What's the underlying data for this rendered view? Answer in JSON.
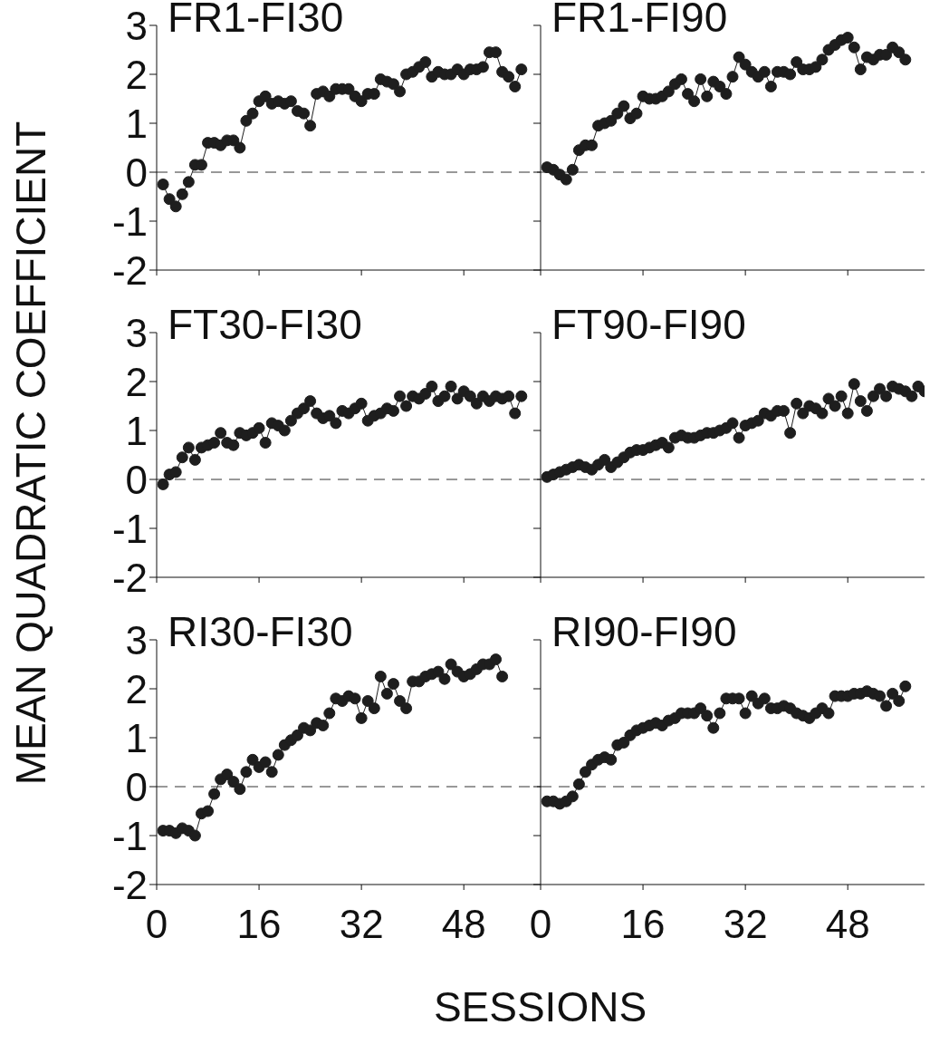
{
  "chart_data": [
    {
      "type": "line",
      "title": "FR1-FI30",
      "ylabel": "MEAN QUADRATIC COEFFICIENT",
      "xlim": [
        0,
        60
      ],
      "xticks": [
        0,
        16,
        32,
        48
      ],
      "ylim": [
        -2,
        3
      ],
      "yticks": [
        3,
        2,
        1,
        0,
        -1,
        -2
      ],
      "tick_labels": "y",
      "marker": "circle",
      "color": "#1e1e1e",
      "ref_lines": [
        {
          "axis": "y",
          "value": 0,
          "line_style": "dashed",
          "color": "#333333"
        }
      ],
      "x": [
        1,
        2,
        3,
        4,
        5,
        6,
        7,
        8,
        9,
        10,
        11,
        12,
        13,
        14,
        15,
        16,
        17,
        18,
        19,
        20,
        21,
        22,
        23,
        24,
        25,
        26,
        27,
        28,
        29,
        30,
        31,
        32,
        33,
        34,
        35,
        36,
        37,
        38,
        39,
        40,
        41,
        42,
        43,
        44,
        45,
        46,
        47,
        48,
        49,
        50,
        51,
        52,
        53,
        54,
        55,
        56,
        57
      ],
      "values": [
        -0.25,
        -0.55,
        -0.7,
        -0.45,
        -0.2,
        0.15,
        0.15,
        0.6,
        0.6,
        0.55,
        0.65,
        0.65,
        0.5,
        1.05,
        1.2,
        1.45,
        1.55,
        1.4,
        1.45,
        1.4,
        1.45,
        1.25,
        1.2,
        0.95,
        1.6,
        1.65,
        1.55,
        1.7,
        1.7,
        1.7,
        1.55,
        1.45,
        1.6,
        1.6,
        1.9,
        1.85,
        1.8,
        1.65,
        2.0,
        2.05,
        2.15,
        2.25,
        1.95,
        2.05,
        2.0,
        2.0,
        2.1,
        2.0,
        2.1,
        2.1,
        2.15,
        2.45,
        2.45,
        2.05,
        1.95,
        1.75,
        2.1
      ]
    },
    {
      "type": "line",
      "title": "FR1-FI90",
      "xlim": [
        0,
        60
      ],
      "xticks": [
        0,
        16,
        32,
        48
      ],
      "ylim": [
        -2,
        3
      ],
      "yticks": [
        3,
        2,
        1,
        0,
        -1,
        -2
      ],
      "tick_labels": false,
      "marker": "circle",
      "color": "#1e1e1e",
      "ref_lines": [
        {
          "axis": "y",
          "value": 0,
          "line_style": "dashed",
          "color": "#333333"
        }
      ],
      "x": [
        1,
        2,
        3,
        4,
        5,
        6,
        7,
        8,
        9,
        10,
        11,
        12,
        13,
        14,
        15,
        16,
        17,
        18,
        19,
        20,
        21,
        22,
        23,
        24,
        25,
        26,
        27,
        28,
        29,
        30,
        31,
        32,
        33,
        34,
        35,
        36,
        37,
        38,
        39,
        40,
        41,
        42,
        43,
        44,
        45,
        46,
        47,
        48,
        49,
        50,
        51,
        52,
        53,
        54,
        55,
        56,
        57
      ],
      "values": [
        0.1,
        0.05,
        -0.05,
        -0.15,
        0.05,
        0.45,
        0.55,
        0.55,
        0.95,
        1.0,
        1.05,
        1.2,
        1.35,
        1.1,
        1.2,
        1.55,
        1.5,
        1.5,
        1.55,
        1.65,
        1.8,
        1.9,
        1.6,
        1.45,
        1.9,
        1.55,
        1.85,
        1.75,
        1.6,
        1.95,
        2.35,
        2.2,
        2.05,
        1.95,
        2.05,
        1.75,
        2.05,
        2.05,
        2.0,
        2.25,
        2.1,
        2.1,
        2.15,
        2.3,
        2.5,
        2.6,
        2.7,
        2.75,
        2.55,
        2.1,
        2.35,
        2.3,
        2.4,
        2.4,
        2.55,
        2.45,
        2.3
      ]
    },
    {
      "type": "line",
      "title": "FT30-FI30",
      "xlim": [
        0,
        60
      ],
      "xticks": [
        0,
        16,
        32,
        48
      ],
      "ylim": [
        -2,
        3
      ],
      "yticks": [
        3,
        2,
        1,
        0,
        -1,
        -2
      ],
      "tick_labels": "y",
      "marker": "circle",
      "color": "#1e1e1e",
      "ref_lines": [
        {
          "axis": "y",
          "value": 0,
          "line_style": "dashed",
          "color": "#333333"
        }
      ],
      "x": [
        1,
        2,
        3,
        4,
        5,
        6,
        7,
        8,
        9,
        10,
        11,
        12,
        13,
        14,
        15,
        16,
        17,
        18,
        19,
        20,
        21,
        22,
        23,
        24,
        25,
        26,
        27,
        28,
        29,
        30,
        31,
        32,
        33,
        34,
        35,
        36,
        37,
        38,
        39,
        40,
        41,
        42,
        43,
        44,
        45,
        46,
        47,
        48,
        49,
        50,
        51,
        52,
        53,
        54,
        55,
        56,
        57
      ],
      "values": [
        -0.1,
        0.1,
        0.15,
        0.45,
        0.65,
        0.4,
        0.65,
        0.7,
        0.75,
        0.95,
        0.75,
        0.7,
        0.95,
        0.9,
        0.95,
        1.05,
        0.75,
        1.15,
        1.1,
        1.0,
        1.2,
        1.35,
        1.45,
        1.6,
        1.35,
        1.25,
        1.3,
        1.15,
        1.4,
        1.35,
        1.45,
        1.55,
        1.2,
        1.3,
        1.35,
        1.45,
        1.4,
        1.7,
        1.5,
        1.7,
        1.65,
        1.75,
        1.9,
        1.6,
        1.7,
        1.9,
        1.65,
        1.8,
        1.7,
        1.55,
        1.7,
        1.6,
        1.7,
        1.65,
        1.7,
        1.35,
        1.7
      ]
    },
    {
      "type": "line",
      "title": "FT90-FI90",
      "xlim": [
        0,
        60
      ],
      "xticks": [
        0,
        16,
        32,
        48
      ],
      "ylim": [
        -2,
        3
      ],
      "yticks": [
        3,
        2,
        1,
        0,
        -1,
        -2
      ],
      "tick_labels": false,
      "marker": "circle",
      "color": "#1e1e1e",
      "ref_lines": [
        {
          "axis": "y",
          "value": 0,
          "line_style": "dashed",
          "color": "#333333"
        }
      ],
      "x": [
        1,
        2,
        3,
        4,
        5,
        6,
        7,
        8,
        9,
        10,
        11,
        12,
        13,
        14,
        15,
        16,
        17,
        18,
        19,
        20,
        21,
        22,
        23,
        24,
        25,
        26,
        27,
        28,
        29,
        30,
        31,
        32,
        33,
        34,
        35,
        36,
        37,
        38,
        39,
        40,
        41,
        42,
        43,
        44,
        45,
        46,
        47,
        48,
        49,
        50,
        51,
        52,
        53,
        54,
        55,
        56,
        57,
        58,
        59,
        60
      ],
      "values": [
        0.05,
        0.1,
        0.15,
        0.2,
        0.25,
        0.3,
        0.25,
        0.2,
        0.3,
        0.4,
        0.25,
        0.35,
        0.45,
        0.55,
        0.6,
        0.6,
        0.65,
        0.7,
        0.75,
        0.65,
        0.85,
        0.9,
        0.85,
        0.85,
        0.9,
        0.95,
        0.95,
        1.0,
        1.05,
        1.15,
        0.85,
        1.1,
        1.15,
        1.2,
        1.35,
        1.3,
        1.4,
        1.4,
        0.95,
        1.55,
        1.35,
        1.5,
        1.45,
        1.35,
        1.65,
        1.5,
        1.7,
        1.35,
        1.95,
        1.6,
        1.4,
        1.7,
        1.85,
        1.7,
        1.9,
        1.85,
        1.8,
        1.7,
        1.9,
        1.8
      ]
    },
    {
      "type": "line",
      "title": "RI30-FI30",
      "xlabel": "SESSIONS",
      "xlim": [
        0,
        60
      ],
      "xticks": [
        0,
        16,
        32,
        48
      ],
      "ylim": [
        -2,
        3
      ],
      "yticks": [
        3,
        2,
        1,
        0,
        -1,
        -2
      ],
      "marker": "circle",
      "color": "#1e1e1e",
      "ref_lines": [
        {
          "axis": "y",
          "value": 0,
          "line_style": "dashed",
          "color": "#333333"
        }
      ],
      "x": [
        1,
        2,
        3,
        4,
        5,
        6,
        7,
        8,
        9,
        10,
        11,
        12,
        13,
        14,
        15,
        16,
        17,
        18,
        19,
        20,
        21,
        22,
        23,
        24,
        25,
        26,
        27,
        28,
        29,
        30,
        31,
        32,
        33,
        34,
        35,
        36,
        37,
        38,
        39,
        40,
        41,
        42,
        43,
        44,
        45,
        46,
        47,
        48,
        49,
        50,
        51,
        52,
        53,
        54
      ],
      "values": [
        -0.9,
        -0.9,
        -0.95,
        -0.85,
        -0.9,
        -1.0,
        -0.55,
        -0.5,
        -0.15,
        0.15,
        0.25,
        0.1,
        -0.05,
        0.3,
        0.55,
        0.4,
        0.5,
        0.3,
        0.65,
        0.85,
        0.95,
        1.05,
        1.2,
        1.15,
        1.3,
        1.25,
        1.5,
        1.8,
        1.75,
        1.85,
        1.8,
        1.4,
        1.75,
        1.6,
        2.25,
        1.9,
        2.1,
        1.75,
        1.6,
        2.15,
        2.15,
        2.25,
        2.3,
        2.35,
        2.2,
        2.5,
        2.35,
        2.25,
        2.3,
        2.4,
        2.5,
        2.5,
        2.6,
        2.25
      ]
    },
    {
      "type": "line",
      "title": "RI90-FI90",
      "xlim": [
        0,
        60
      ],
      "xticks": [
        0,
        16,
        32,
        48
      ],
      "ylim": [
        -2,
        3
      ],
      "yticks": [
        3,
        2,
        1,
        0,
        -1,
        -2
      ],
      "tick_labels": "x",
      "marker": "circle",
      "color": "#1e1e1e",
      "ref_lines": [
        {
          "axis": "y",
          "value": 0,
          "line_style": "dashed",
          "color": "#333333"
        }
      ],
      "x": [
        1,
        2,
        3,
        4,
        5,
        6,
        7,
        8,
        9,
        10,
        11,
        12,
        13,
        14,
        15,
        16,
        17,
        18,
        19,
        20,
        21,
        22,
        23,
        24,
        25,
        26,
        27,
        28,
        29,
        30,
        31,
        32,
        33,
        34,
        35,
        36,
        37,
        38,
        39,
        40,
        41,
        42,
        43,
        44,
        45,
        46,
        47,
        48,
        49,
        50,
        51,
        52,
        53,
        54,
        55,
        56,
        57
      ],
      "values": [
        -0.3,
        -0.3,
        -0.35,
        -0.3,
        -0.2,
        0.05,
        0.3,
        0.45,
        0.55,
        0.6,
        0.55,
        0.85,
        0.9,
        1.05,
        1.15,
        1.2,
        1.25,
        1.3,
        1.25,
        1.35,
        1.4,
        1.5,
        1.5,
        1.5,
        1.6,
        1.45,
        1.2,
        1.5,
        1.8,
        1.8,
        1.8,
        1.5,
        1.85,
        1.7,
        1.8,
        1.6,
        1.6,
        1.65,
        1.6,
        1.5,
        1.45,
        1.4,
        1.5,
        1.6,
        1.5,
        1.85,
        1.85,
        1.85,
        1.9,
        1.9,
        1.95,
        1.9,
        1.85,
        1.65,
        1.9,
        1.75,
        2.05
      ]
    }
  ]
}
